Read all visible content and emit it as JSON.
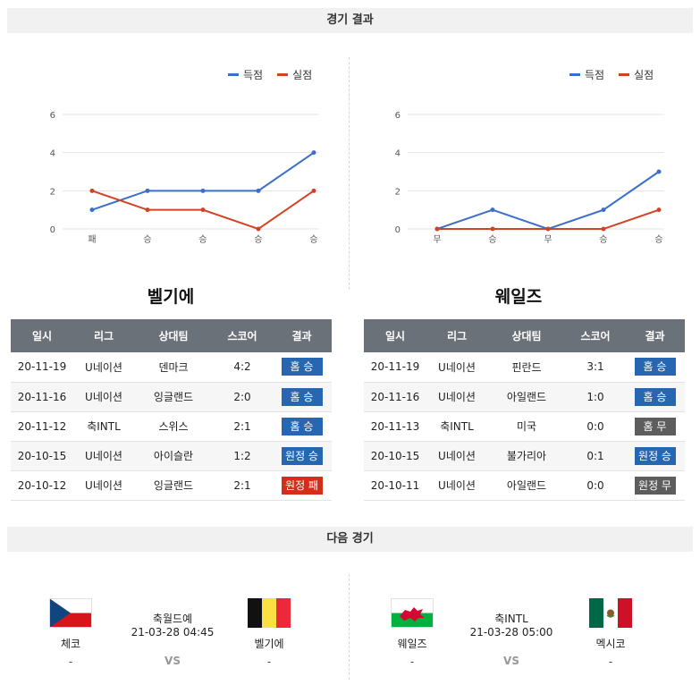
{
  "sections": {
    "results_title": "경기 결과",
    "next_title": "다음 경기"
  },
  "legend": {
    "scored": "득점",
    "conceded": "실점"
  },
  "colors": {
    "scored": "#3b6fc9",
    "conceded": "#d14423",
    "win": "#2766b1",
    "draw": "#5d5d5d",
    "loss": "#d42e1b"
  },
  "chart_data": [
    {
      "type": "line",
      "categories": [
        "패",
        "승",
        "승",
        "승",
        "승"
      ],
      "series": [
        {
          "name": "득점",
          "values": [
            1,
            2,
            2,
            2,
            4
          ]
        },
        {
          "name": "실점",
          "values": [
            2,
            1,
            1,
            0,
            2
          ]
        }
      ],
      "yticks": [
        "0",
        "2",
        "4",
        "6"
      ],
      "ylim": [
        0,
        6
      ],
      "grid": true,
      "legend_position": "top-right"
    },
    {
      "type": "line",
      "categories": [
        "무",
        "승",
        "무",
        "승",
        "승"
      ],
      "series": [
        {
          "name": "득점",
          "values": [
            0,
            1,
            0,
            1,
            3
          ]
        },
        {
          "name": "실점",
          "values": [
            0,
            0,
            0,
            0,
            1
          ]
        }
      ],
      "yticks": [
        "0",
        "2",
        "4",
        "6"
      ],
      "ylim": [
        0,
        6
      ],
      "grid": true,
      "legend_position": "top-right"
    }
  ],
  "teams": [
    {
      "title": "벨기에",
      "headers": [
        "일시",
        "리그",
        "상대팀",
        "스코어",
        "결과"
      ],
      "rows": [
        {
          "date": "20-11-19",
          "league": "U네이션",
          "opponent": "덴마크",
          "score": "4:2",
          "result": "홈 승",
          "type": "win"
        },
        {
          "date": "20-11-16",
          "league": "U네이션",
          "opponent": "잉글랜드",
          "score": "2:0",
          "result": "홈 승",
          "type": "win"
        },
        {
          "date": "20-11-12",
          "league": "축INTL",
          "opponent": "스위스",
          "score": "2:1",
          "result": "홈 승",
          "type": "win"
        },
        {
          "date": "20-10-15",
          "league": "U네이션",
          "opponent": "아이슬란",
          "score": "1:2",
          "result": "원정 승",
          "type": "win"
        },
        {
          "date": "20-10-12",
          "league": "U네이션",
          "opponent": "잉글랜드",
          "score": "2:1",
          "result": "원정 패",
          "type": "loss"
        }
      ]
    },
    {
      "title": "웨일즈",
      "headers": [
        "일시",
        "리그",
        "상대팀",
        "스코어",
        "결과"
      ],
      "rows": [
        {
          "date": "20-11-19",
          "league": "U네이션",
          "opponent": "핀란드",
          "score": "3:1",
          "result": "홈 승",
          "type": "win"
        },
        {
          "date": "20-11-16",
          "league": "U네이션",
          "opponent": "아일랜드",
          "score": "1:0",
          "result": "홈 승",
          "type": "win"
        },
        {
          "date": "20-11-13",
          "league": "축INTL",
          "opponent": "미국",
          "score": "0:0",
          "result": "홈 무",
          "type": "draw"
        },
        {
          "date": "20-10-15",
          "league": "U네이션",
          "opponent": "불가리아",
          "score": "0:1",
          "result": "원정 승",
          "type": "win"
        },
        {
          "date": "20-10-11",
          "league": "U네이션",
          "opponent": "아일랜드",
          "score": "0:0",
          "result": "원정 무",
          "type": "draw"
        }
      ]
    }
  ],
  "next_matches": [
    {
      "home": {
        "name": "체코",
        "score": "-",
        "flag": "czech-flag"
      },
      "away": {
        "name": "벨기에",
        "score": "-",
        "flag": "belgium-flag"
      },
      "league": "축월드예",
      "datetime": "21-03-28 04:45",
      "vs": "VS"
    },
    {
      "home": {
        "name": "웨일즈",
        "score": "-",
        "flag": "wales-flag"
      },
      "away": {
        "name": "멕시코",
        "score": "-",
        "flag": "mexico-flag"
      },
      "league": "축INTL",
      "datetime": "21-03-28 05:00",
      "vs": "VS"
    }
  ]
}
